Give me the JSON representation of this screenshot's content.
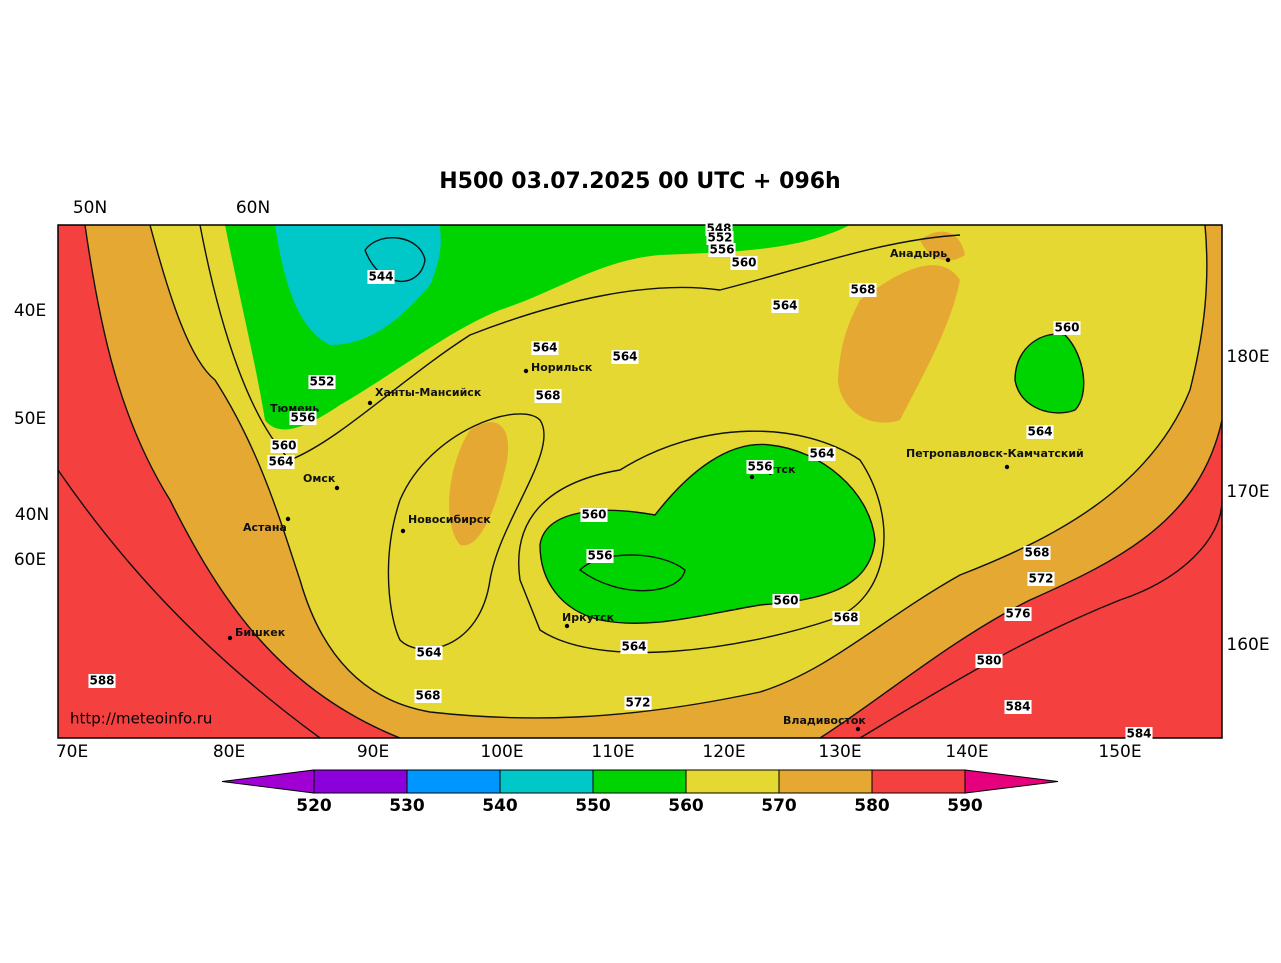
{
  "title": "H500  03.07.2025 00 UTC + 096h",
  "grid_labels": [
    "50N",
    "60N",
    "40E",
    "50E",
    "40N",
    "60E",
    "180E",
    "170E",
    "160E",
    "70E",
    "80E",
    "90E",
    "100E",
    "110E",
    "120E",
    "130E",
    "140E",
    "150E"
  ],
  "cities": [
    "Анадырь",
    "Норильск",
    "Ханты-Мансийск",
    "Тюмень",
    "Омск",
    "Новосибирск",
    "Астана",
    "Якутск",
    "Петропавловск-Камчатский",
    "Иркутск",
    "Бишкек",
    "Владивосток"
  ],
  "contour_labels": [
    544,
    548,
    552,
    556,
    560,
    564,
    568,
    560,
    564,
    564,
    552,
    568,
    556,
    560,
    564,
    564,
    556,
    564,
    560,
    556,
    568,
    572,
    576,
    560,
    568,
    564,
    564,
    580,
    588,
    568,
    572,
    584,
    584
  ],
  "source": "http://meteoinfo.ru",
  "colorbar": {
    "levels": [
      520,
      530,
      540,
      550,
      560,
      570,
      580,
      590
    ],
    "colors": [
      "#a000d2",
      "#8c00dc",
      "#0096ff",
      "#00c8c8",
      "#00d400",
      "#e5d832",
      "#e5a832",
      "#f54040",
      "#e6007e"
    ]
  }
}
